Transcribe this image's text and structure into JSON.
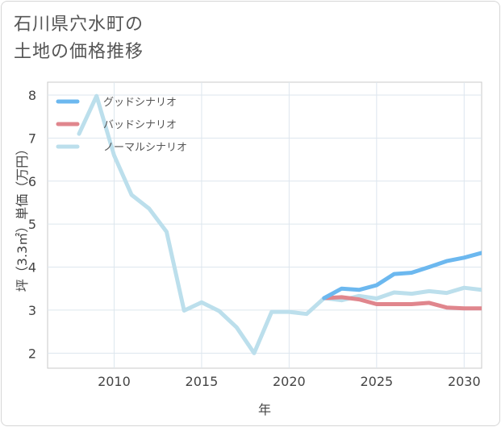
{
  "header": {
    "title_line1": "石川県穴水町の",
    "title_line2": "土地の価格推移"
  },
  "chart_data": {
    "type": "line",
    "xlabel": "年",
    "ylabel": "坪（3.3㎡）単価（万円）",
    "xlim": [
      2006.2,
      2031
    ],
    "ylim": [
      1.65,
      8.3
    ],
    "x_ticks": [
      2010,
      2015,
      2020,
      2025,
      2030
    ],
    "y_ticks": [
      2,
      3,
      4,
      5,
      6,
      7,
      8
    ],
    "grid": true,
    "legend_position": "top-left",
    "series": [
      {
        "name": "グッドシナリオ",
        "color": "#6cb8ef",
        "x": [
          2022,
          2023,
          2024,
          2025,
          2026,
          2027,
          2028,
          2029,
          2030,
          2031
        ],
        "y": [
          3.28,
          3.5,
          3.47,
          3.58,
          3.84,
          3.87,
          4.0,
          4.14,
          4.22,
          4.33
        ]
      },
      {
        "name": "バッドシナリオ",
        "color": "#e0868d",
        "x": [
          2022,
          2023,
          2024,
          2025,
          2026,
          2027,
          2028,
          2029,
          2030,
          2031
        ],
        "y": [
          3.28,
          3.3,
          3.25,
          3.14,
          3.14,
          3.14,
          3.17,
          3.06,
          3.04,
          3.04
        ]
      },
      {
        "name": "ノーマルシナリオ",
        "color": "#bcdfec",
        "x": [
          2008,
          2009,
          2010,
          2011,
          2012,
          2013,
          2014,
          2015,
          2016,
          2017,
          2018,
          2019,
          2020,
          2021,
          2022,
          2023,
          2024,
          2025,
          2026,
          2027,
          2028,
          2029,
          2030,
          2031
        ],
        "y": [
          7.1,
          7.98,
          6.6,
          5.68,
          5.36,
          4.82,
          2.99,
          3.18,
          2.98,
          2.6,
          2.0,
          2.96,
          2.96,
          2.91,
          3.28,
          3.23,
          3.33,
          3.27,
          3.41,
          3.38,
          3.44,
          3.4,
          3.52,
          3.47
        ]
      }
    ]
  }
}
